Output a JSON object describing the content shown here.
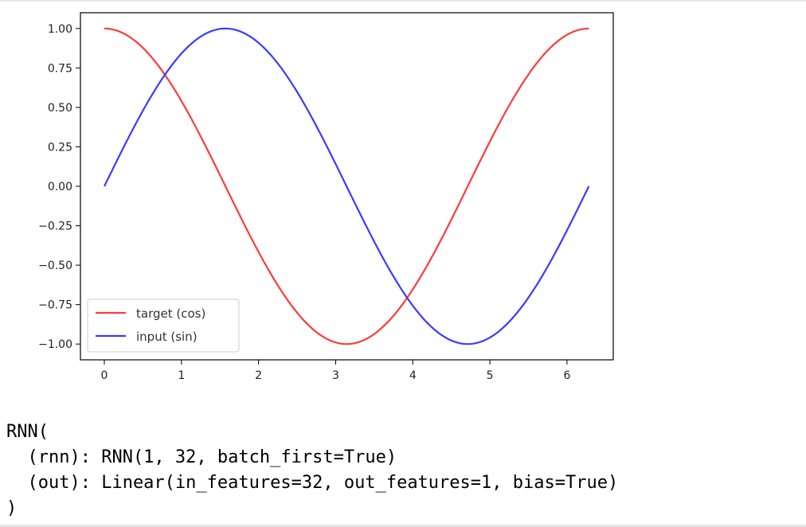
{
  "chart_data": {
    "type": "line",
    "xlim": [
      -0.31,
      6.6
    ],
    "ylim": [
      -1.1,
      1.1
    ],
    "xticks": [
      0,
      1,
      2,
      3,
      4,
      5,
      6
    ],
    "yticks": [
      1.0,
      0.75,
      0.5,
      0.25,
      0.0,
      -0.25,
      -0.5,
      -0.75,
      -1.0
    ],
    "xtick_labels": [
      "0",
      "1",
      "2",
      "3",
      "4",
      "5",
      "6"
    ],
    "ytick_labels": [
      "1.00",
      "0.75",
      "0.50",
      "0.25",
      "0.00",
      "−0.25",
      "−0.50",
      "−0.75",
      "−1.00"
    ],
    "x_range": [
      0,
      6.2832
    ],
    "series": [
      {
        "name": "target (cos)",
        "function": "cos",
        "color": "#ff3a3a"
      },
      {
        "name": "input (sin)",
        "function": "sin",
        "color": "#3a3aff"
      }
    ],
    "legend_position": "lower-left",
    "grid": false
  },
  "console": {
    "lines": [
      "RNN(",
      "  (rnn): RNN(1, 32, batch_first=True)",
      "  (out): Linear(in_features=32, out_features=1, bias=True)",
      ")"
    ]
  }
}
